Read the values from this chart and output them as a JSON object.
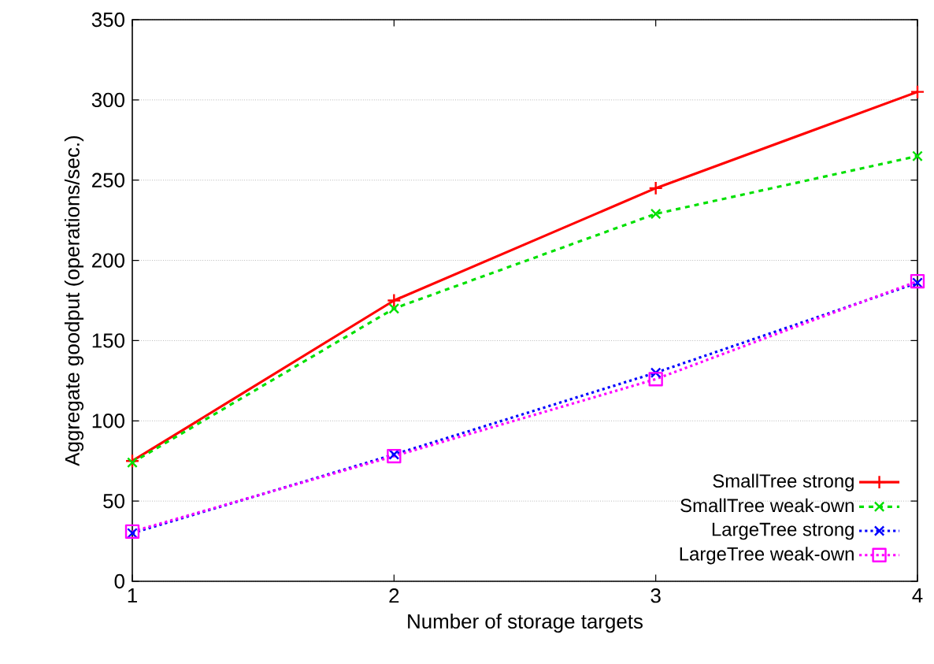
{
  "chart_data": {
    "type": "line",
    "xlabel": "Number of storage targets",
    "ylabel": "Aggregate goodput (operations/sec.)",
    "x": [
      1,
      2,
      3,
      4
    ],
    "series": [
      {
        "name": "SmallTree strong",
        "color": "#ff0000",
        "values": [
          75,
          175,
          245,
          305
        ],
        "marker": "plus",
        "line_style": "solid"
      },
      {
        "name": "SmallTree weak-own",
        "color": "#00e000",
        "values": [
          74,
          170,
          229,
          265
        ],
        "marker": "cross",
        "line_style": "dashed"
      },
      {
        "name": "LargeTree strong",
        "color": "#0000ff",
        "values": [
          30,
          79,
          130,
          186
        ],
        "marker": "cross",
        "line_style": "dotted"
      },
      {
        "name": "LargeTree weak-own",
        "color": "#ff00ff",
        "values": [
          31,
          78,
          126,
          187
        ],
        "marker": "square",
        "line_style": "dotted"
      }
    ],
    "xlim": [
      1,
      4
    ],
    "xticks": [
      1,
      2,
      3,
      4
    ],
    "ylim": [
      0,
      350
    ],
    "yticks": [
      0,
      50,
      100,
      150,
      200,
      250,
      300,
      350
    ],
    "grid": "y",
    "legend": "bottom right"
  }
}
